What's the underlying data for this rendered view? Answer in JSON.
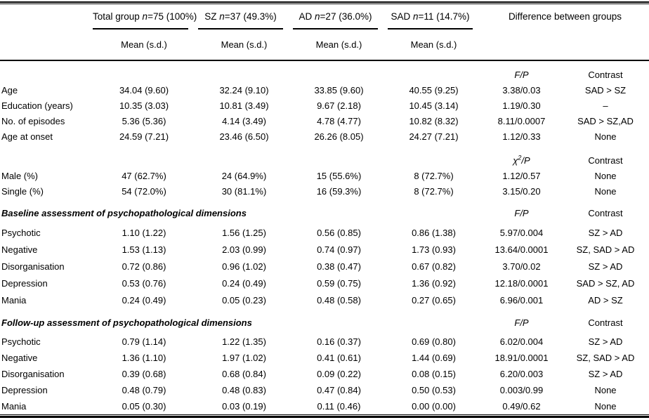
{
  "table": {
    "group_headers": [
      {
        "pre": "Total group ",
        "n": "n",
        "post": "=75 (100%)"
      },
      {
        "pre": "SZ ",
        "n": "n",
        "post": "=37 (49.3%)"
      },
      {
        "pre": "AD ",
        "n": "n",
        "post": "=27 (36.0%)"
      },
      {
        "pre": "SAD ",
        "n": "n",
        "post": "=11 (14.7%)"
      }
    ],
    "difference_header": "Difference between groups",
    "mean_sd": "Mean (s.d.)",
    "stats": {
      "fp": "F/P",
      "chi": "χ",
      "chi_sup": "2",
      "chi_rest": "/P",
      "contrast": "Contrast"
    },
    "demographics": [
      {
        "label": "Age",
        "total": "34.04 (9.60)",
        "sz": "32.24 (9.10)",
        "ad": "33.85 (9.60)",
        "sad": "40.55 (9.25)",
        "fp": "3.38/0.03",
        "contrast": "SAD > SZ"
      },
      {
        "label": "Education (years)",
        "total": "10.35 (3.03)",
        "sz": "10.81 (3.49)",
        "ad": "9.67 (2.18)",
        "sad": "10.45 (3.14)",
        "fp": "1.19/0.30",
        "contrast": "–"
      },
      {
        "label": "No. of episodes",
        "total": "5.36 (5.36)",
        "sz": "4.14 (3.49)",
        "ad": "4.78 (4.77)",
        "sad": "10.82 (8.32)",
        "fp": "8.11/0.0007",
        "contrast": "SAD > SZ,AD"
      },
      {
        "label": "Age at onset",
        "total": "24.59 (7.21)",
        "sz": "23.46 (6.50)",
        "ad": "26.26 (8.05)",
        "sad": "24.27 (7.21)",
        "fp": "1.12/0.33",
        "contrast": "None"
      }
    ],
    "categorical": [
      {
        "label": "Male (%)",
        "total": "47 (62.7%)",
        "sz": "24 (64.9%)",
        "ad": "15 (55.6%)",
        "sad": "8 (72.7%)",
        "fp": "1.12/0.57",
        "contrast": "None"
      },
      {
        "label": "Single (%)",
        "total": "54 (72.0%)",
        "sz": "30 (81.1%)",
        "ad": "16 (59.3%)",
        "sad": "8 (72.7%)",
        "fp": "3.15/0.20",
        "contrast": "None"
      }
    ],
    "baseline": {
      "label": "Baseline assessment of psychopathological dimensions",
      "rows": [
        {
          "label": "Psychotic",
          "total": "1.10 (1.22)",
          "sz": "1.56 (1.25)",
          "ad": "0.56 (0.85)",
          "sad": "0.86 (1.38)",
          "fp": "5.97/0.004",
          "contrast": "SZ > AD"
        },
        {
          "label": "Negative",
          "total": "1.53 (1.13)",
          "sz": "2.03 (0.99)",
          "ad": "0.74 (0.97)",
          "sad": "1.73 (0.93)",
          "fp": "13.64/0.0001",
          "contrast": "SZ, SAD > AD"
        },
        {
          "label": "Disorganisation",
          "total": "0.72 (0.86)",
          "sz": "0.96 (1.02)",
          "ad": "0.38 (0.47)",
          "sad": "0.67 (0.82)",
          "fp": "3.70/0.02",
          "contrast": "SZ > AD"
        },
        {
          "label": "Depression",
          "total": "0.53 (0.76)",
          "sz": "0.24 (0.49)",
          "ad": "0.59 (0.75)",
          "sad": "1.36 (0.92)",
          "fp": "12.18/0.0001",
          "contrast": "SAD > SZ, AD"
        },
        {
          "label": "Mania",
          "total": "0.24 (0.49)",
          "sz": "0.05 (0.23)",
          "ad": "0.48 (0.58)",
          "sad": "0.27 (0.65)",
          "fp": "6.96/0.001",
          "contrast": "AD > SZ"
        }
      ]
    },
    "followup": {
      "label": "Follow-up assessment of psychopathological dimensions",
      "rows": [
        {
          "label": "Psychotic",
          "total": "0.79 (1.14)",
          "sz": "1.22 (1.35)",
          "ad": "0.16 (0.37)",
          "sad": "0.69 (0.80)",
          "fp": "6.02/0.004",
          "contrast": "SZ > AD"
        },
        {
          "label": "Negative",
          "total": "1.36 (1.10)",
          "sz": "1.97 (1.02)",
          "ad": "0.41 (0.61)",
          "sad": "1.44 (0.69)",
          "fp": "18.91/0.0001",
          "contrast": "SZ, SAD > AD"
        },
        {
          "label": "Disorganisation",
          "total": "0.39 (0.68)",
          "sz": "0.68 (0.84)",
          "ad": "0.09 (0.22)",
          "sad": "0.08 (0.15)",
          "fp": "6.20/0.003",
          "contrast": "SZ > AD"
        },
        {
          "label": "Depression",
          "total": "0.48 (0.79)",
          "sz": "0.48 (0.83)",
          "ad": "0.47 (0.84)",
          "sad": "0.50 (0.53)",
          "fp": "0.003/0.99",
          "contrast": "None"
        },
        {
          "label": "Mania",
          "total": "0.05 (0.30)",
          "sz": "0.03 (0.19)",
          "ad": "0.11 (0.46)",
          "sad": "0.00 (0.00)",
          "fp": "0.49/0.62",
          "contrast": "None"
        }
      ]
    }
  }
}
